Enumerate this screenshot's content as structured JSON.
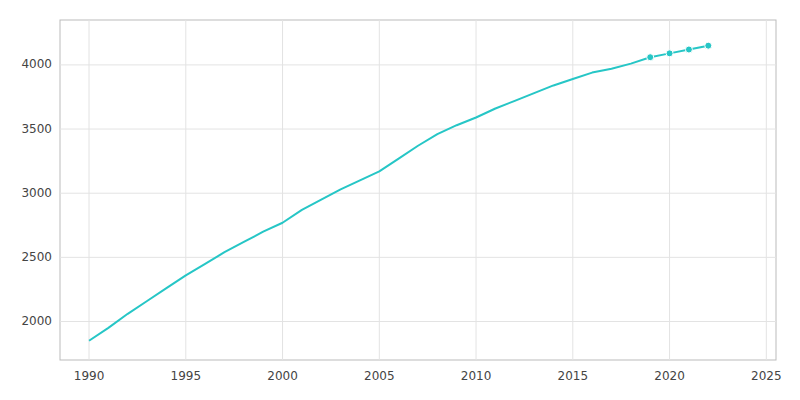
{
  "chart_data": {
    "type": "line",
    "x": [
      1990,
      1991,
      1992,
      1993,
      1994,
      1995,
      1996,
      1997,
      1998,
      1999,
      2000,
      2001,
      2002,
      2003,
      2004,
      2005,
      2006,
      2007,
      2008,
      2009,
      2010,
      2011,
      2012,
      2013,
      2014,
      2015,
      2016,
      2017,
      2018,
      2019,
      2020,
      2021,
      2022
    ],
    "series": [
      {
        "type": "line",
        "color": "#26C6C6",
        "line_style": "solid",
        "values": [
          1850,
          1950,
          2060,
          2160,
          2260,
          2360,
          2450,
          2540,
          2620,
          2700,
          2770,
          2870,
          2950,
          3030,
          3100,
          3170,
          3270,
          3370,
          3460,
          3530,
          3590,
          3660,
          3720,
          3780,
          3840,
          3890,
          3940,
          3970,
          4010,
          4060,
          4090,
          4120,
          4150
        ]
      },
      {
        "type": "scatter",
        "color": "#26C6C6",
        "marker": "circle",
        "x": [
          2019,
          2020,
          2021,
          2022
        ],
        "values": [
          4060,
          4090,
          4120,
          4150
        ]
      }
    ],
    "xlim": [
      1988.5,
      2025.5
    ],
    "xticks": [
      1990,
      1995,
      2000,
      2005,
      2010,
      2015,
      2020,
      2025
    ],
    "ylim": [
      1700,
      4350
    ],
    "yticks": [
      2000,
      2500,
      3000,
      3500,
      4000
    ],
    "grid": true
  }
}
